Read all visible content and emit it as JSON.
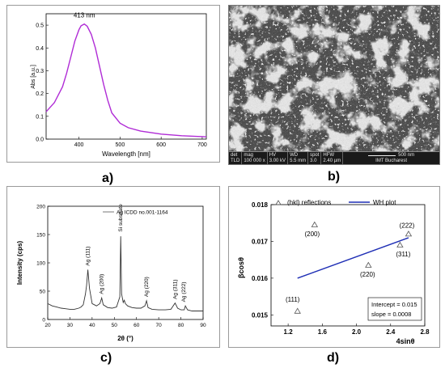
{
  "panel_a": {
    "caption": "a)",
    "peak_label": "413 nm",
    "chart_data": {
      "type": "line",
      "xlabel": "Wavelength [nm]",
      "ylabel": "Abs [a.u.]",
      "xlim": [
        320,
        710
      ],
      "ylim": [
        0,
        0.55
      ],
      "x_ticks": [
        "400",
        "500",
        "600",
        "700"
      ],
      "y_ticks": [
        "0.0",
        "0.1",
        "0.2",
        "0.3",
        "0.4",
        "0.5"
      ],
      "line_color": "#b02cd6",
      "x": [
        320,
        340,
        360,
        370,
        380,
        390,
        400,
        405,
        413,
        420,
        430,
        440,
        450,
        460,
        470,
        480,
        500,
        520,
        550,
        600,
        650,
        700,
        710
      ],
      "y": [
        0.12,
        0.16,
        0.23,
        0.29,
        0.36,
        0.43,
        0.48,
        0.497,
        0.505,
        0.495,
        0.46,
        0.4,
        0.32,
        0.24,
        0.17,
        0.115,
        0.07,
        0.05,
        0.035,
        0.022,
        0.015,
        0.011,
        0.01
      ]
    }
  },
  "panel_b": {
    "caption": "b)",
    "sem_bar": {
      "cols": [
        {
          "h": "det",
          "v": "TLD"
        },
        {
          "h": "mag",
          "v": "100 000 x"
        },
        {
          "h": "HV",
          "v": "3.00 kV"
        },
        {
          "h": "WD",
          "v": "5.5 mm"
        },
        {
          "h": "spot",
          "v": "3.0"
        },
        {
          "h": "HFW",
          "v": "2.40 µm"
        }
      ],
      "scale_label": "500 nm",
      "institution": "IMT Bucharest"
    }
  },
  "panel_c": {
    "caption": "c)",
    "legend": "Ag ICDD no.001-1164",
    "chart_data": {
      "type": "line",
      "xlabel": "2θ (°)",
      "ylabel": "Intensity (cps)",
      "xlim": [
        20,
        90
      ],
      "ylim": [
        0,
        200
      ],
      "x_ticks": [
        "20",
        "30",
        "40",
        "50",
        "60",
        "70",
        "80",
        "90"
      ],
      "y_ticks": [
        "0",
        "50",
        "100",
        "150",
        "200"
      ],
      "x": [
        20,
        22,
        24,
        26,
        28,
        30,
        32,
        34,
        35,
        36,
        37,
        37.5,
        38.1,
        38.8,
        40,
        42,
        43.5,
        44.3,
        45,
        47,
        49,
        51,
        52.5,
        52.9,
        53.3,
        54,
        54.5,
        55,
        56,
        58,
        60,
        62,
        63.8,
        64.5,
        65.2,
        67,
        70,
        73,
        75.5,
        77.4,
        78.5,
        80,
        81.5,
        82,
        83,
        85,
        88,
        90
      ],
      "y": [
        28,
        24,
        22,
        20,
        19,
        18,
        18,
        20,
        22,
        26,
        45,
        60,
        88,
        55,
        28,
        24,
        28,
        38,
        26,
        21,
        20,
        22,
        40,
        147,
        45,
        30,
        34,
        28,
        24,
        21,
        20,
        20,
        24,
        33,
        21,
        18,
        17,
        17,
        18,
        29,
        20,
        17,
        17,
        24,
        17,
        15,
        15,
        15
      ],
      "annotations": [
        {
          "label": "Ag (111)",
          "x": 38.1,
          "y": 92
        },
        {
          "label": "Ag (200)",
          "x": 44.3,
          "y": 42
        },
        {
          "label": "Si substrate",
          "x": 52.9,
          "y": 152
        },
        {
          "label": "Ag (220)",
          "x": 64.5,
          "y": 37
        },
        {
          "label": "Ag (311)",
          "x": 77.4,
          "y": 33
        },
        {
          "label": "Ag (222)",
          "x": 81.3,
          "y": 28
        }
      ]
    }
  },
  "panel_d": {
    "caption": "d)",
    "intercept_text": "Intercept = 0.015",
    "slope_text": "slope = 0.0008",
    "chart_data": {
      "type": "scatter",
      "xlabel": "4sinθ",
      "ylabel": "βcosθ",
      "xlim": [
        1.0,
        2.8
      ],
      "ylim": [
        0.0147,
        0.018
      ],
      "x_ticks": [
        "1.2",
        "1.6",
        "2.0",
        "2.4",
        "2.8"
      ],
      "y_ticks": [
        "0.015",
        "0.016",
        "0.017",
        "0.018"
      ],
      "series": [
        {
          "name": "(hkl) reflections",
          "marker": "triangle",
          "points": [
            {
              "label": "(111)",
              "x": 1.31,
              "y": 0.0151
            },
            {
              "label": "(200)",
              "x": 1.51,
              "y": 0.01745
            },
            {
              "label": "(220)",
              "x": 2.14,
              "y": 0.01635
            },
            {
              "label": "(311)",
              "x": 2.51,
              "y": 0.0169
            },
            {
              "label": "(222)",
              "x": 2.61,
              "y": 0.0172
            }
          ]
        },
        {
          "name": "WH plot",
          "color": "#1f2fb5",
          "x": [
            1.31,
            2.61
          ],
          "y": [
            0.016,
            0.0171
          ]
        }
      ]
    }
  }
}
